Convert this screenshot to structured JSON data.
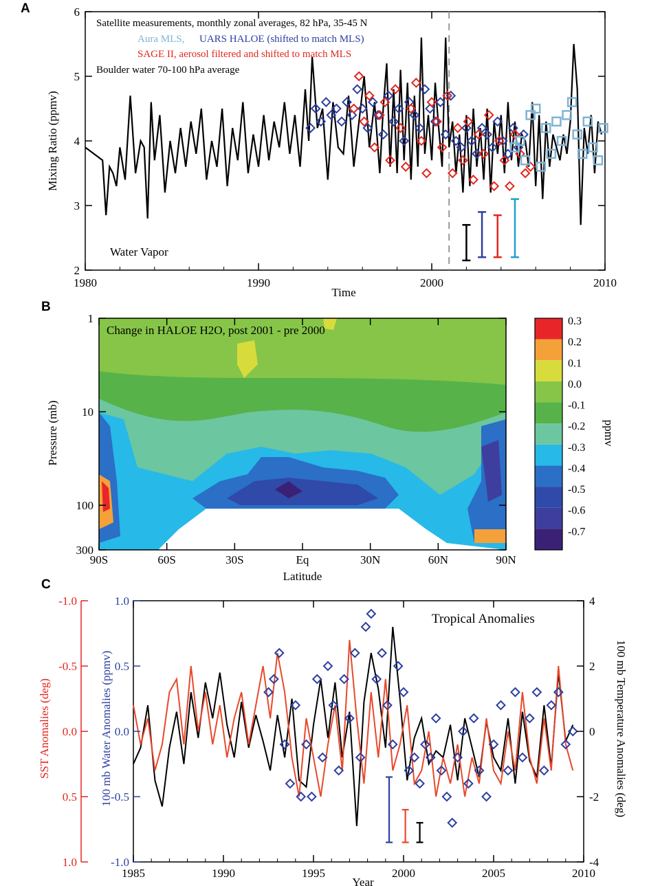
{
  "chart_data": [
    {
      "panel": "A",
      "type": "line",
      "title": "",
      "xlabel": "Time",
      "ylabel": "Mixing Ratio (ppmv)",
      "xlim": [
        1980,
        2010
      ],
      "ylim": [
        2,
        6
      ],
      "x_ticks": [
        "1980",
        "1990",
        "2000",
        "2010"
      ],
      "y_ticks": [
        "2",
        "3",
        "4",
        "5",
        "6"
      ],
      "legend": [
        {
          "label": "Satellite measurements, monthly zonal averages, 82 hPa, 35-45 N",
          "color": "#000000"
        },
        {
          "label": "Aura MLS,",
          "color": "#7fb3d5"
        },
        {
          "label": "UARS HALOE (shifted to match MLS)",
          "color": "#2d3fa0"
        },
        {
          "label": "SAGE II, aerosol filtered and shifted to match MLS",
          "color": "#e3261d"
        },
        {
          "label": "Boulder water 70-100 hPa average",
          "color": "#000000"
        }
      ],
      "annotations": [
        "Water Vapor"
      ],
      "vertical_line_x": 2001,
      "series": [
        {
          "name": "Boulder water 70-100 hPa average",
          "color": "#000000",
          "x": [
            1980.0,
            1980.5,
            1981.0,
            1981.2,
            1981.4,
            1981.6,
            1981.8,
            1982.0,
            1982.3,
            1982.6,
            1982.9,
            1983.2,
            1983.4,
            1983.6,
            1983.8,
            1984.0,
            1984.3,
            1984.6,
            1984.9,
            1985.2,
            1985.5,
            1985.8,
            1986.1,
            1986.4,
            1986.7,
            1987.0,
            1987.3,
            1987.6,
            1987.9,
            1988.2,
            1988.5,
            1988.8,
            1989.1,
            1989.4,
            1989.7,
            1990.0,
            1990.3,
            1990.6,
            1990.9,
            1991.2,
            1991.5,
            1991.8,
            1992.1,
            1992.4,
            1992.7,
            1992.9,
            1993.1,
            1993.4,
            1993.7,
            1994.0,
            1994.3,
            1994.6,
            1994.9,
            1995.2,
            1995.5,
            1995.8,
            1996.1,
            1996.4,
            1996.7,
            1997.0,
            1997.2,
            1997.4,
            1997.6,
            1997.8,
            1998.0,
            1998.2,
            1998.4,
            1998.6,
            1998.8,
            1999.0,
            1999.2,
            1999.4,
            1999.6,
            1999.8,
            2000.0,
            2000.2,
            2000.4,
            2000.6,
            2000.8,
            2001.0,
            2001.2,
            2001.4,
            2001.6,
            2001.8,
            2002.0,
            2002.2,
            2002.4,
            2002.6,
            2002.8,
            2003.0,
            2003.2,
            2003.4,
            2003.6,
            2003.8,
            2004.0,
            2004.2,
            2004.4,
            2004.6,
            2004.8,
            2005.0,
            2005.2,
            2005.4,
            2005.6,
            2005.8,
            2006.0,
            2006.2,
            2006.4,
            2006.6,
            2006.8,
            2007.0,
            2007.2,
            2007.4,
            2007.6,
            2007.8,
            2008.0,
            2008.2,
            2008.4,
            2008.6,
            2008.8,
            2009.0,
            2009.2,
            2009.4,
            2009.6,
            2009.8
          ],
          "values": [
            3.9,
            3.8,
            3.7,
            2.85,
            3.6,
            3.5,
            3.3,
            3.9,
            3.4,
            4.7,
            3.5,
            4.0,
            3.9,
            2.8,
            4.6,
            3.7,
            4.4,
            3.2,
            4.0,
            3.5,
            4.2,
            3.6,
            4.3,
            3.8,
            4.5,
            3.4,
            4.0,
            3.6,
            4.5,
            3.3,
            4.2,
            3.7,
            4.6,
            3.5,
            4.1,
            3.6,
            4.4,
            3.7,
            4.3,
            3.9,
            4.6,
            3.8,
            4.4,
            3.6,
            4.8,
            4.0,
            5.3,
            4.2,
            4.5,
            3.4,
            4.6,
            3.9,
            3.8,
            4.7,
            3.6,
            4.3,
            5.0,
            3.9,
            4.6,
            3.5,
            4.5,
            5.2,
            3.6,
            4.8,
            3.5,
            5.1,
            3.7,
            4.9,
            3.4,
            4.7,
            3.6,
            5.6,
            3.8,
            4.4,
            3.7,
            4.9,
            4.2,
            3.6,
            5.6,
            3.9,
            4.3,
            3.5,
            4.1,
            3.2,
            4.4,
            3.3,
            4.5,
            3.6,
            4.2,
            3.4,
            4.5,
            3.2,
            4.3,
            3.8,
            4.4,
            3.5,
            4.6,
            3.7,
            4.3,
            3.6,
            4.1,
            4.0,
            3.6,
            4.6,
            3.3,
            4.4,
            3.1,
            4.3,
            3.6,
            4.1,
            3.9,
            3.7,
            4.1,
            3.8,
            4.3,
            5.5,
            4.8,
            2.7,
            4.2,
            3.8,
            4.4,
            3.5,
            4.3,
            4.1
          ]
        },
        {
          "name": "UARS HALOE",
          "color": "#2d3fa0",
          "marker": "diamond",
          "x": [
            1993.0,
            1993.3,
            1993.6,
            1993.9,
            1994.2,
            1994.5,
            1994.8,
            1995.1,
            1995.4,
            1995.7,
            1996.0,
            1996.3,
            1996.6,
            1996.9,
            1997.2,
            1997.5,
            1997.8,
            1998.1,
            1998.4,
            1998.7,
            1999.0,
            1999.3,
            1999.6,
            1999.9,
            2000.2,
            2000.5,
            2000.8,
            2001.1,
            2001.4,
            2001.7,
            2002.0,
            2002.3,
            2002.6,
            2002.9,
            2003.2,
            2003.5,
            2003.8,
            2004.1,
            2004.4,
            2004.7,
            2005.0,
            2005.3
          ],
          "values": [
            4.2,
            4.5,
            4.3,
            4.6,
            4.4,
            4.5,
            4.3,
            4.6,
            4.4,
            4.8,
            4.5,
            4.2,
            4.6,
            4.4,
            4.1,
            4.7,
            4.3,
            4.5,
            4.0,
            4.6,
            4.4,
            4.2,
            4.8,
            4.5,
            4.3,
            4.6,
            4.1,
            4.7,
            4.0,
            3.9,
            4.2,
            4.0,
            3.8,
            4.2,
            4.1,
            3.9,
            4.3,
            4.0,
            3.8,
            4.2,
            3.9,
            4.1
          ]
        },
        {
          "name": "SAGE II",
          "color": "#e3261d",
          "marker": "diamond",
          "x": [
            1995.5,
            1995.8,
            1996.1,
            1996.4,
            1996.7,
            1997.0,
            1997.3,
            1997.6,
            1997.9,
            1998.2,
            1998.5,
            1998.8,
            1999.1,
            1999.4,
            1999.7,
            2000.0,
            2000.3,
            2000.6,
            2000.9,
            2001.2,
            2001.5,
            2001.8,
            2002.1,
            2002.4,
            2002.7,
            2003.0,
            2003.3,
            2003.6,
            2003.9,
            2004.2,
            2004.5,
            2004.8,
            2005.1,
            2005.4,
            2005.7
          ],
          "values": [
            4.5,
            5.0,
            4.3,
            4.7,
            3.9,
            4.4,
            4.6,
            3.7,
            4.8,
            4.2,
            3.6,
            4.5,
            4.9,
            4.0,
            3.5,
            4.6,
            4.3,
            3.9,
            4.7,
            3.5,
            4.2,
            3.7,
            4.3,
            3.4,
            4.1,
            3.8,
            4.4,
            3.3,
            4.0,
            3.7,
            3.3,
            4.1,
            3.8,
            3.5,
            3.6
          ]
        },
        {
          "name": "Aura MLS",
          "color": "#7fb3d5",
          "marker": "square",
          "x": [
            2004.8,
            2005.1,
            2005.4,
            2005.7,
            2006.0,
            2006.3,
            2006.6,
            2006.9,
            2007.2,
            2007.5,
            2007.8,
            2008.1,
            2008.4,
            2008.7,
            2009.0,
            2009.3,
            2009.6,
            2009.9
          ],
          "values": [
            3.9,
            4.0,
            3.7,
            4.4,
            4.5,
            3.6,
            4.2,
            3.8,
            4.3,
            4.0,
            4.4,
            4.6,
            4.1,
            3.8,
            4.3,
            3.9,
            3.7,
            4.2
          ]
        }
      ],
      "error_bars": [
        {
          "x": 2002.0,
          "low": 2.15,
          "high": 2.7,
          "color": "#000000"
        },
        {
          "x": 2002.9,
          "low": 2.2,
          "high": 2.9,
          "color": "#2d3fa0"
        },
        {
          "x": 2003.8,
          "low": 2.2,
          "high": 2.85,
          "color": "#e3261d"
        },
        {
          "x": 2004.8,
          "low": 2.2,
          "high": 3.1,
          "color": "#1fa0d0"
        }
      ]
    },
    {
      "panel": "B",
      "type": "heatmap",
      "title": "Change in HALOE H2O, post 2001 - pre 2000",
      "xlabel": "Latitude",
      "ylabel": "Pressure (mb)",
      "x_ticks": [
        "90S",
        "60S",
        "30S",
        "Eq",
        "30N",
        "60N",
        "90N"
      ],
      "y_ticks": [
        "1",
        "10",
        "100",
        "300"
      ],
      "colorbar_label": "ppmv",
      "colorbar_ticks": [
        "0.3",
        "0.2",
        "0.1",
        "0.0",
        "-0.1",
        "-0.2",
        "-0.3",
        "-0.4",
        "-0.5",
        "-0.6",
        "-0.7"
      ],
      "colorbar_colors": [
        "#e8262a",
        "#f5a13a",
        "#d7dc3c",
        "#86c548",
        "#57b24a",
        "#6cc6a0",
        "#27b9e8",
        "#2b6fc6",
        "#2f4aa8",
        "#3e3e9e",
        "#3b2175"
      ]
    },
    {
      "panel": "C",
      "type": "line",
      "title": "Tropical Anomalies",
      "xlabel": "Year",
      "y_left_outer_label": "SST Anomalies (deg)",
      "y_left_inner_label": "100 mb Water Anomalies (ppmv)",
      "y_right_label": "100 mb Temperature Anomalies  (deg)",
      "xlim": [
        1985,
        2010
      ],
      "x_ticks": [
        "1985",
        "1990",
        "1995",
        "2000",
        "2005",
        "2010"
      ],
      "sst_ticks": [
        "-1.0",
        "-0.5",
        "0.0",
        "0.5",
        "1.0"
      ],
      "water_ticks": [
        "1.0",
        "0.5",
        "0.0",
        "-0.5",
        "-1.0"
      ],
      "temp_ticks": [
        "4",
        "2",
        "0",
        "-2",
        "-4"
      ],
      "sst_ylim": [
        1.0,
        -1.0
      ],
      "water_ylim": [
        -1.0,
        1.0
      ],
      "temp_ylim": [
        -4,
        4
      ],
      "series": [
        {
          "name": "100 mb Temperature Anomalies",
          "color": "#000000",
          "axis": "temp",
          "x": [
            1985.0,
            1985.4,
            1985.8,
            1986.2,
            1986.6,
            1987.0,
            1987.4,
            1987.8,
            1988.2,
            1988.6,
            1989.0,
            1989.4,
            1989.8,
            1990.2,
            1990.6,
            1991.0,
            1991.4,
            1991.8,
            1992.2,
            1992.6,
            1993.0,
            1993.4,
            1993.8,
            1994.2,
            1994.6,
            1995.0,
            1995.4,
            1995.8,
            1996.2,
            1996.6,
            1997.0,
            1997.4,
            1997.8,
            1998.2,
            1998.6,
            1999.0,
            1999.4,
            1999.8,
            2000.2,
            2000.6,
            2001.0,
            2001.4,
            2001.8,
            2002.2,
            2002.6,
            2003.0,
            2003.4,
            2003.8,
            2004.2,
            2004.6,
            2005.0,
            2005.4,
            2005.8,
            2006.2,
            2006.6,
            2007.0,
            2007.4,
            2007.8,
            2008.2,
            2008.6,
            2009.0,
            2009.4
          ],
          "values": [
            -1.0,
            -0.5,
            0.8,
            -1.5,
            -2.3,
            -0.5,
            0.6,
            -1.0,
            1.2,
            -0.2,
            1.5,
            0.4,
            1.8,
            0.2,
            -0.8,
            0.9,
            -0.5,
            0.5,
            -0.3,
            -1.2,
            0.5,
            -0.8,
            1.0,
            -1.5,
            -1.7,
            0.2,
            1.6,
            -0.2,
            1.5,
            -0.8,
            0.6,
            -2.9,
            0.9,
            2.4,
            1.3,
            -0.5,
            3.2,
            1.0,
            -1.5,
            -0.2,
            0.4,
            -1.0,
            -0.6,
            -0.8,
            0.2,
            -1.5,
            0.4,
            -0.5,
            -1.4,
            0.3,
            -0.8,
            -1.2,
            0.4,
            -1.6,
            0.6,
            -0.9,
            -1.4,
            0.8,
            -1.1,
            1.8,
            -0.3,
            0.2
          ]
        },
        {
          "name": "SST Anomalies",
          "color": "#e8482a",
          "axis": "sst",
          "x": [
            1985.0,
            1985.4,
            1985.8,
            1986.2,
            1986.6,
            1987.0,
            1987.4,
            1987.8,
            1988.2,
            1988.6,
            1989.0,
            1989.4,
            1989.8,
            1990.2,
            1990.6,
            1991.0,
            1991.4,
            1991.8,
            1992.2,
            1992.6,
            1993.0,
            1993.4,
            1993.8,
            1994.2,
            1994.6,
            1995.0,
            1995.4,
            1995.8,
            1996.2,
            1996.6,
            1997.0,
            1997.4,
            1997.8,
            1998.2,
            1998.6,
            1999.0,
            1999.4,
            1999.8,
            2000.2,
            2000.6,
            2001.0,
            2001.4,
            2001.8,
            2002.2,
            2002.6,
            2003.0,
            2003.4,
            2003.8,
            2004.2,
            2004.6,
            2005.0,
            2005.4,
            2005.8,
            2006.2,
            2006.6,
            2007.0,
            2007.4,
            2007.8,
            2008.2,
            2008.6,
            2009.0,
            2009.4
          ],
          "values": [
            -0.2,
            0.1,
            -0.1,
            0.3,
            0.1,
            -0.3,
            -0.4,
            0.1,
            -0.5,
            0.0,
            -0.3,
            0.1,
            -0.2,
            0.2,
            -0.1,
            -0.3,
            0.1,
            -0.2,
            -0.5,
            -0.1,
            -0.6,
            -0.3,
            0.2,
            0.5,
            -0.1,
            0.2,
            0.5,
            0.1,
            -0.2,
            0.3,
            -0.7,
            -0.1,
            0.4,
            -0.3,
            0.2,
            -0.4,
            0.3,
            0.1,
            -0.2,
            0.4,
            0.3,
            0.0,
            0.5,
            0.2,
            0.4,
            0.1,
            0.5,
            0.2,
            0.4,
            -0.1,
            0.3,
            0.4,
            0.0,
            0.3,
            -0.3,
            0.2,
            0.4,
            -0.1,
            0.3,
            -0.5,
            0.1,
            0.3
          ]
        },
        {
          "name": "100 mb Water Anomalies",
          "color": "#2d3fa0",
          "axis": "water",
          "marker": "diamond",
          "x": [
            1992.5,
            1992.8,
            1993.1,
            1993.4,
            1993.7,
            1994.0,
            1994.3,
            1994.6,
            1994.9,
            1995.2,
            1995.5,
            1995.8,
            1996.1,
            1996.4,
            1996.7,
            1997.0,
            1997.3,
            1997.6,
            1997.9,
            1998.2,
            1998.5,
            1998.8,
            1999.1,
            1999.4,
            1999.7,
            2000.0,
            2000.3,
            2000.6,
            2000.9,
            2001.2,
            2001.5,
            2001.8,
            2002.1,
            2002.4,
            2002.7,
            2003.0,
            2003.3,
            2003.6,
            2003.9,
            2004.2,
            2004.6,
            2005.0,
            2005.4,
            2005.8,
            2006.2,
            2006.6,
            2007.0,
            2007.4,
            2007.8,
            2008.2,
            2008.6,
            2009.0,
            2009.4
          ],
          "values": [
            0.3,
            0.4,
            0.6,
            -0.1,
            -0.4,
            0.2,
            -0.5,
            -0.1,
            -0.5,
            0.4,
            -0.2,
            0.5,
            0.2,
            -0.3,
            0.4,
            0.1,
            0.6,
            -0.2,
            0.8,
            0.9,
            0.4,
            0.6,
            0.2,
            -0.1,
            0.5,
            0.3,
            -0.3,
            -0.2,
            -0.4,
            -0.1,
            -0.2,
            0.1,
            -0.3,
            -0.5,
            -0.7,
            -0.2,
            0.0,
            -0.4,
            0.1,
            -0.3,
            -0.5,
            -0.1,
            0.2,
            -0.3,
            0.3,
            -0.2,
            0.1,
            0.3,
            -0.3,
            0.2,
            0.3,
            -0.1,
            0.0
          ]
        }
      ],
      "error_bars": [
        {
          "x": 1999.2,
          "low": -0.85,
          "high": -0.35,
          "color": "#2d3fa0"
        },
        {
          "x": 2000.1,
          "low": -0.85,
          "high": -0.6,
          "color": "#e8482a"
        },
        {
          "x": 2000.9,
          "low": -0.85,
          "high": -0.7,
          "color": "#000000"
        }
      ]
    }
  ],
  "panel_labels": [
    "A",
    "B",
    "C"
  ]
}
